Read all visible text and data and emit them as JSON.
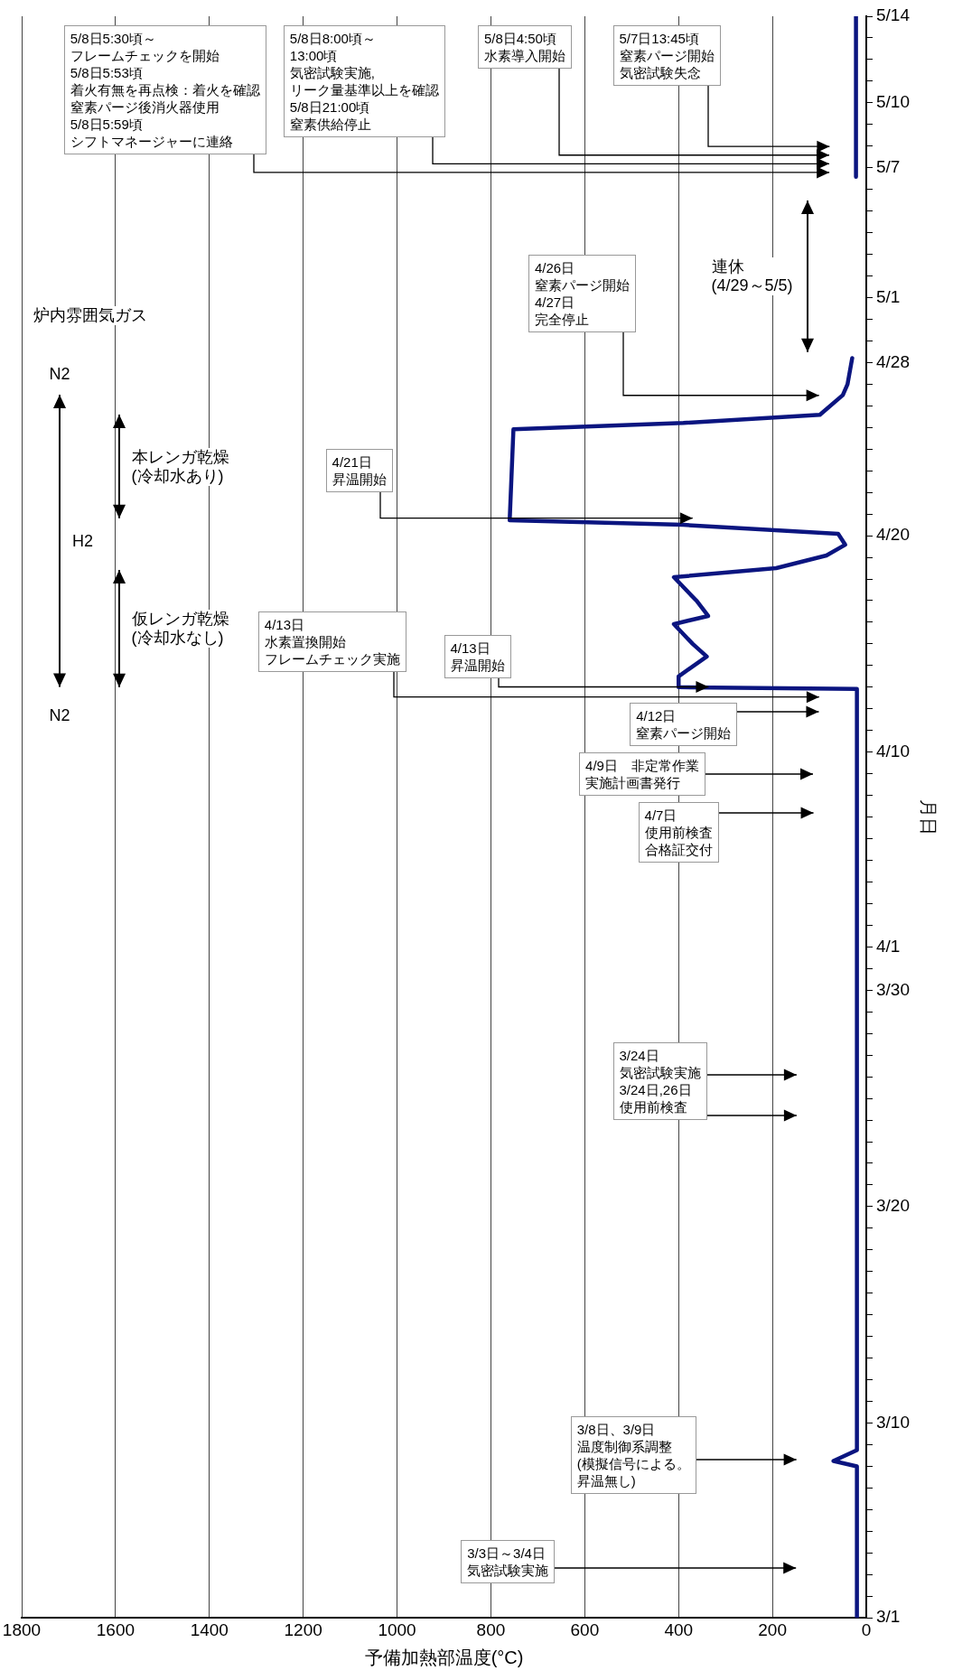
{
  "chart_data": {
    "type": "line",
    "orientation": "horizontal",
    "xlabel": "予備加熱部温度(°C)",
    "ylabel": "月日",
    "xlim": [
      1800,
      0
    ],
    "xticks": [
      0,
      200,
      400,
      600,
      800,
      1000,
      1200,
      1400,
      1600,
      1800
    ],
    "ylim": [
      "--03-01",
      "--05-14"
    ],
    "yticks": [
      {
        "value": "--03-01",
        "label": "3/1"
      },
      {
        "value": "--03-02",
        "label": null
      },
      {
        "value": "--03-03",
        "label": null
      },
      {
        "value": "--03-04",
        "label": null
      },
      {
        "value": "--03-05",
        "label": null
      },
      {
        "value": "--03-06",
        "label": null
      },
      {
        "value": "--03-07",
        "label": null
      },
      {
        "value": "--03-08",
        "label": null
      },
      {
        "value": "--03-09",
        "label": null
      },
      {
        "value": "--03-10",
        "label": "3/10"
      },
      {
        "value": "--03-11",
        "label": null
      },
      {
        "value": "--03-12",
        "label": null
      },
      {
        "value": "--03-13",
        "label": null
      },
      {
        "value": "--03-14",
        "label": null
      },
      {
        "value": "--03-15",
        "label": null
      },
      {
        "value": "--03-16",
        "label": null
      },
      {
        "value": "--03-17",
        "label": null
      },
      {
        "value": "--03-18",
        "label": null
      },
      {
        "value": "--03-19",
        "label": null
      },
      {
        "value": "--03-20",
        "label": "3/20"
      },
      {
        "value": "--03-21",
        "label": null
      },
      {
        "value": "--03-22",
        "label": null
      },
      {
        "value": "--03-23",
        "label": null
      },
      {
        "value": "--03-24",
        "label": null
      },
      {
        "value": "--03-25",
        "label": null
      },
      {
        "value": "--03-26",
        "label": null
      },
      {
        "value": "--03-27",
        "label": null
      },
      {
        "value": "--03-28",
        "label": null
      },
      {
        "value": "--03-29",
        "label": null
      },
      {
        "value": "--03-30",
        "label": "3/30"
      },
      {
        "value": "--03-31",
        "label": null
      },
      {
        "value": "--04-01",
        "label": "4/1"
      },
      {
        "value": "--04-02",
        "label": null
      },
      {
        "value": "--04-03",
        "label": null
      },
      {
        "value": "--04-04",
        "label": null
      },
      {
        "value": "--04-05",
        "label": null
      },
      {
        "value": "--04-06",
        "label": null
      },
      {
        "value": "--04-07",
        "label": null
      },
      {
        "value": "--04-08",
        "label": null
      },
      {
        "value": "--04-09",
        "label": null
      },
      {
        "value": "--04-10",
        "label": "4/10"
      },
      {
        "value": "--04-11",
        "label": null
      },
      {
        "value": "--04-12",
        "label": null
      },
      {
        "value": "--04-13",
        "label": null
      },
      {
        "value": "--04-14",
        "label": null
      },
      {
        "value": "--04-15",
        "label": null
      },
      {
        "value": "--04-16",
        "label": null
      },
      {
        "value": "--04-17",
        "label": null
      },
      {
        "value": "--04-18",
        "label": null
      },
      {
        "value": "--04-19",
        "label": null
      },
      {
        "value": "--04-20",
        "label": "4/20"
      },
      {
        "value": "--04-21",
        "label": null
      },
      {
        "value": "--04-22",
        "label": null
      },
      {
        "value": "--04-23",
        "label": null
      },
      {
        "value": "--04-24",
        "label": null
      },
      {
        "value": "--04-25",
        "label": null
      },
      {
        "value": "--04-26",
        "label": null
      },
      {
        "value": "--04-27",
        "label": null
      },
      {
        "value": "--04-28",
        "label": "4/28"
      },
      {
        "value": "--04-29",
        "label": null
      },
      {
        "value": "--04-30",
        "label": null
      },
      {
        "value": "--05-01",
        "label": "5/1"
      },
      {
        "value": "--05-02",
        "label": null
      },
      {
        "value": "--05-03",
        "label": null
      },
      {
        "value": "--05-04",
        "label": null
      },
      {
        "value": "--05-05",
        "label": null
      },
      {
        "value": "--05-06",
        "label": null
      },
      {
        "value": "--05-07",
        "label": "5/7"
      },
      {
        "value": "--05-08",
        "label": null
      },
      {
        "value": "--05-09",
        "label": null
      },
      {
        "value": "--05-10",
        "label": "5/10"
      },
      {
        "value": "--05-11",
        "label": null
      },
      {
        "value": "--05-12",
        "label": null
      },
      {
        "value": "--05-13",
        "label": null
      },
      {
        "value": "--05-14",
        "label": "5/14"
      }
    ],
    "grid": "x",
    "legend": false,
    "marker": "none",
    "line_style": "solid",
    "series": [
      {
        "color": "#0b1580",
        "x": [
          "--03-01",
          "--03-08",
          "--03-08T06:00",
          "--03-08T18:00",
          "--04-12T22:00",
          "--04-13",
          "--04-13T12:00",
          "--04-14T10:00",
          "--04-15",
          "--04-15T22:00",
          "--04-16T07:00",
          "--04-17",
          "--04-18T02:00",
          "--04-18T12:00",
          "--04-19T02:00",
          "--04-19T14:00",
          "--04-20T02:00",
          "--04-20T12:00",
          "--04-20T17:00",
          "--04-24T22:00",
          "--04-25T05:00",
          "--04-25T14:00",
          "--04-26T12:00",
          "--04-27",
          "--04-28T05:00",
          "--05-01",
          "--05-06T14:00",
          "--05-14"
        ],
        "values": [
          20,
          20,
          70,
          20,
          20,
          400,
          400,
          340,
          370,
          410,
          337,
          362,
          410,
          192,
          85,
          45,
          60,
          390,
          760,
          752,
          390,
          99,
          50,
          40,
          30,
          null,
          22,
          22
        ]
      }
    ],
    "annotations": [
      "炉内雰囲気ガス",
      "N2",
      "N2",
      "5/8日5:30頃～フレームチェックを開始5/8日5:53頃着火有無を再点検：着火を確認窒素パージ後消火器使用5/8日5:59頃シフトマネージャーに連絡",
      "5/8日8:00頃～13:00頃気密試験実施,リーク量基準以上を確認5/8日21:00頃窒素供給停止",
      "5/8日4:50頃水素導入開始",
      "5/7日13:45頃窒素パージ開始気密試験失念",
      "4/26日窒素パージ開始4/27日完全停止",
      "4/21日昇温開始",
      {
        "text": "4/13日昇温開始",
        "x": 337,
        "y": "--04-13"
      },
      "4/13日水素置換開始フレームチェック実施",
      "4/12日窒素パージ開始",
      "4/9日　非定常作業実施計画書発行",
      "4/7日使用前検査合格証交付",
      "3/24日気密試験実施3/24日,26日使用前検査",
      "3/8日、3/9日温度制御系調整(模擬信号による。昇温無し)",
      "3/3日～3/4日気密試験実施",
      "H2",
      "仮レンガ乾燥(冷却水なし)",
      "本レンガ乾燥(冷却水あり)",
      "連休(4/29～5/5)"
    ]
  }
}
